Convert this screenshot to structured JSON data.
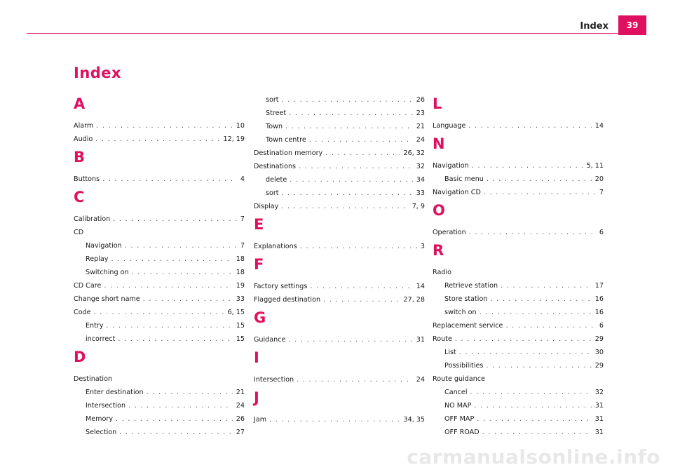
{
  "header": {
    "title": "Index",
    "page_number": "39"
  },
  "main_title": "Index",
  "columns": [
    [
      {
        "type": "letter",
        "text": "A"
      },
      {
        "type": "entry",
        "term": "Alarm",
        "pages": "10"
      },
      {
        "type": "entry",
        "term": "Audio",
        "pages": "12, 19"
      },
      {
        "type": "letter",
        "text": "B"
      },
      {
        "type": "entry",
        "term": "Buttons",
        "pages": "4"
      },
      {
        "type": "letter",
        "text": "C"
      },
      {
        "type": "entry",
        "term": "Calibration",
        "pages": "7"
      },
      {
        "type": "heading",
        "term": "CD"
      },
      {
        "type": "entry",
        "sub": true,
        "term": "Navigation",
        "pages": "7"
      },
      {
        "type": "entry",
        "sub": true,
        "term": "Replay",
        "pages": "18"
      },
      {
        "type": "entry",
        "sub": true,
        "term": "Switching on",
        "pages": "18"
      },
      {
        "type": "entry",
        "term": "CD Care",
        "pages": "19"
      },
      {
        "type": "entry",
        "term": "Change short name",
        "pages": "33"
      },
      {
        "type": "entry",
        "term": "Code",
        "pages": "6, 15"
      },
      {
        "type": "entry",
        "sub": true,
        "term": "Entry",
        "pages": "15"
      },
      {
        "type": "entry",
        "sub": true,
        "term": "incorrect",
        "pages": "15"
      },
      {
        "type": "letter",
        "text": "D"
      },
      {
        "type": "heading",
        "term": "Destination"
      },
      {
        "type": "entry",
        "sub": true,
        "term": "Enter destination",
        "pages": "21"
      },
      {
        "type": "entry",
        "sub": true,
        "term": "Intersection",
        "pages": "24"
      },
      {
        "type": "entry",
        "sub": true,
        "term": "Memory",
        "pages": "26"
      },
      {
        "type": "entry",
        "sub": true,
        "term": "Selection",
        "pages": "27"
      }
    ],
    [
      {
        "type": "entry",
        "sub": true,
        "term": "sort",
        "pages": "26"
      },
      {
        "type": "entry",
        "sub": true,
        "term": "Street",
        "pages": "23"
      },
      {
        "type": "entry",
        "sub": true,
        "term": "Town",
        "pages": "21"
      },
      {
        "type": "entry",
        "sub": true,
        "term": "Town centre",
        "pages": "24"
      },
      {
        "type": "entry",
        "term": "Destination memory",
        "pages": "26, 32"
      },
      {
        "type": "entry",
        "term": "Destinations",
        "pages": "32"
      },
      {
        "type": "entry",
        "sub": true,
        "term": "delete",
        "pages": "34"
      },
      {
        "type": "entry",
        "sub": true,
        "term": "sort",
        "pages": "33"
      },
      {
        "type": "entry",
        "term": "Display",
        "pages": "7, 9"
      },
      {
        "type": "letter",
        "text": "E"
      },
      {
        "type": "entry",
        "term": "Explanations",
        "pages": "3"
      },
      {
        "type": "letter",
        "text": "F"
      },
      {
        "type": "entry",
        "term": "Factory settings",
        "pages": "14"
      },
      {
        "type": "entry",
        "term": "Flagged destination",
        "pages": "27, 28"
      },
      {
        "type": "letter",
        "text": "G"
      },
      {
        "type": "entry",
        "term": "Guidance",
        "pages": "31"
      },
      {
        "type": "letter",
        "text": "I"
      },
      {
        "type": "entry",
        "term": "Intersection",
        "pages": "24"
      },
      {
        "type": "letter",
        "text": "J"
      },
      {
        "type": "entry",
        "term": "Jam",
        "pages": "34, 35"
      }
    ],
    [
      {
        "type": "letter",
        "text": "L"
      },
      {
        "type": "entry",
        "term": "Language",
        "pages": "14"
      },
      {
        "type": "letter",
        "text": "N"
      },
      {
        "type": "entry",
        "term": "Navigation",
        "pages": "5, 11"
      },
      {
        "type": "entry",
        "sub": true,
        "term": "Basic menu",
        "pages": "20"
      },
      {
        "type": "entry",
        "term": "Navigation CD",
        "pages": "7"
      },
      {
        "type": "letter",
        "text": "O"
      },
      {
        "type": "entry",
        "term": "Operation",
        "pages": "6"
      },
      {
        "type": "letter",
        "text": "R"
      },
      {
        "type": "heading",
        "term": "Radio"
      },
      {
        "type": "entry",
        "sub": true,
        "term": "Retrieve station",
        "pages": "17"
      },
      {
        "type": "entry",
        "sub": true,
        "term": "Store station",
        "pages": "16"
      },
      {
        "type": "entry",
        "sub": true,
        "term": "switch on",
        "pages": "16"
      },
      {
        "type": "entry",
        "term": "Replacement service",
        "pages": "6"
      },
      {
        "type": "entry",
        "term": "Route",
        "pages": "29"
      },
      {
        "type": "entry",
        "sub": true,
        "term": "List",
        "pages": "30"
      },
      {
        "type": "entry",
        "sub": true,
        "term": "Possibilities",
        "pages": "29"
      },
      {
        "type": "heading",
        "term": "Route guidance"
      },
      {
        "type": "entry",
        "sub": true,
        "term": "Cancel",
        "pages": "32"
      },
      {
        "type": "entry",
        "sub": true,
        "term": "NO MAP",
        "pages": "31"
      },
      {
        "type": "entry",
        "sub": true,
        "term": "OFF MAP",
        "pages": "31"
      },
      {
        "type": "entry",
        "sub": true,
        "term": "OFF ROAD",
        "pages": "31"
      }
    ]
  ],
  "watermark": "carmanualsonline.info",
  "colors": {
    "accent": "#e01060",
    "text": "#1a1a1a",
    "watermark": "#e8e8e8"
  }
}
